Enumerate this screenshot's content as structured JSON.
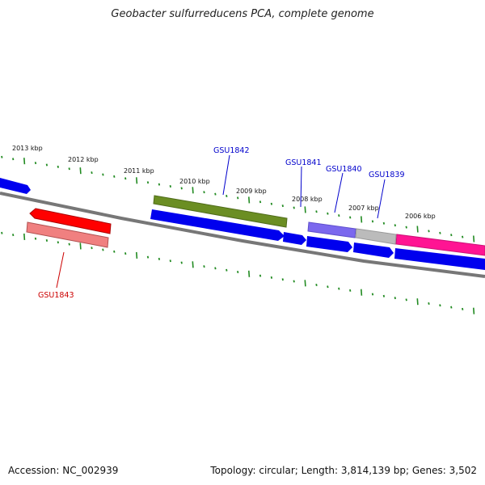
{
  "title": "Geobacter sulfurreducens PCA, complete genome",
  "footer": {
    "accession": "Accession: NC_002939",
    "summary": "Topology: circular; Length: 3,814,139 bp; Genes: 3,502"
  },
  "ruler": [
    "2013 kbp",
    "2012 kbp",
    "2011 kbp",
    "2010 kbp",
    "2009 kbp",
    "2008 kbp",
    "2007 kbp",
    "2006 kbp"
  ],
  "gene_labels": {
    "gsu1842": "GSU1842",
    "gsu1841": "GSU1841",
    "gsu1840": "GSU1840",
    "gsu1839": "GSU1839",
    "gsu1843": "GSU1843"
  },
  "colors": {
    "cds_blue": "#0000ee",
    "olive": "#6b8e23",
    "purple": "#7b68ee",
    "grey": "#bbbbbb",
    "magenta": "#ff1493",
    "red": "#ff0000",
    "light_red": "#f08080",
    "tick_green": "#228b22",
    "backbone": "#777777",
    "label_blue": "#0000cc",
    "label_red": "#cc0000"
  }
}
